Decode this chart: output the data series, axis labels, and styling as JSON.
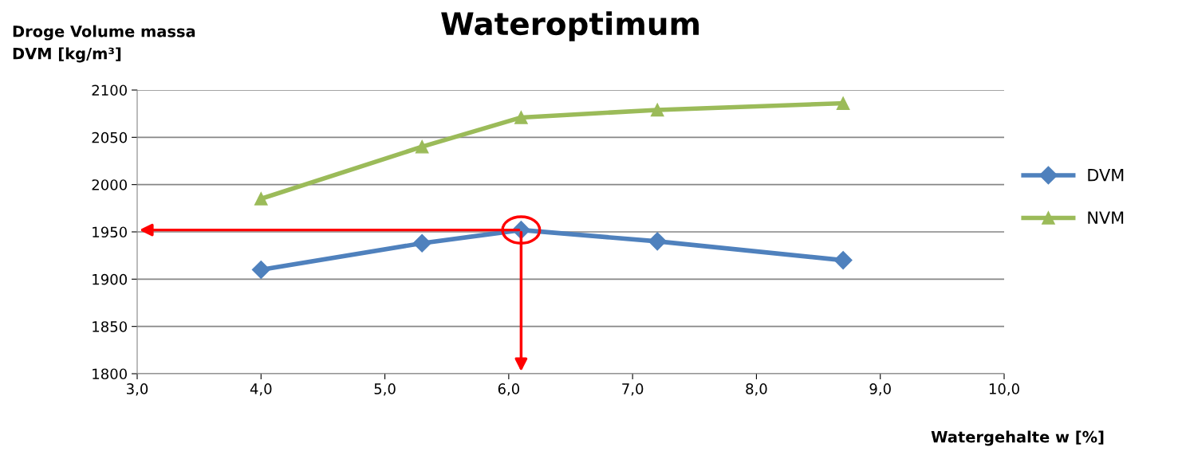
{
  "chart_data": {
    "type": "line",
    "title": "Wateroptimum",
    "ylabel": "Droge Volume massa\nDVM [kg/m³]",
    "xlabel": "Watergehalte w [%]",
    "x": [
      4.0,
      5.3,
      6.1,
      7.2,
      8.7
    ],
    "series": [
      {
        "name": "DVM",
        "color": "#4f81bd",
        "marker": "diamond",
        "values": [
          1910,
          1938,
          1952,
          1940,
          1920
        ]
      },
      {
        "name": "NVM",
        "color": "#9bbb59",
        "marker": "triangle",
        "values": [
          1985,
          2040,
          2071,
          2079,
          2086
        ]
      }
    ],
    "xlim": [
      3.0,
      10.0
    ],
    "xticks": [
      {
        "value": 3.0,
        "label": "3,0"
      },
      {
        "value": 4.0,
        "label": "4,0"
      },
      {
        "value": 5.0,
        "label": "5,0"
      },
      {
        "value": 6.0,
        "label": "6,0"
      },
      {
        "value": 7.0,
        "label": "7,0"
      },
      {
        "value": 8.0,
        "label": "8,0"
      },
      {
        "value": 9.0,
        "label": "9,0"
      },
      {
        "value": 10.0,
        "label": "10,0"
      }
    ],
    "ylim": [
      1800,
      2100
    ],
    "yticks": [
      1800,
      1850,
      1900,
      1950,
      2000,
      2050,
      2100
    ],
    "grid": "y",
    "legend": "right",
    "line_style": "solid"
  }
}
